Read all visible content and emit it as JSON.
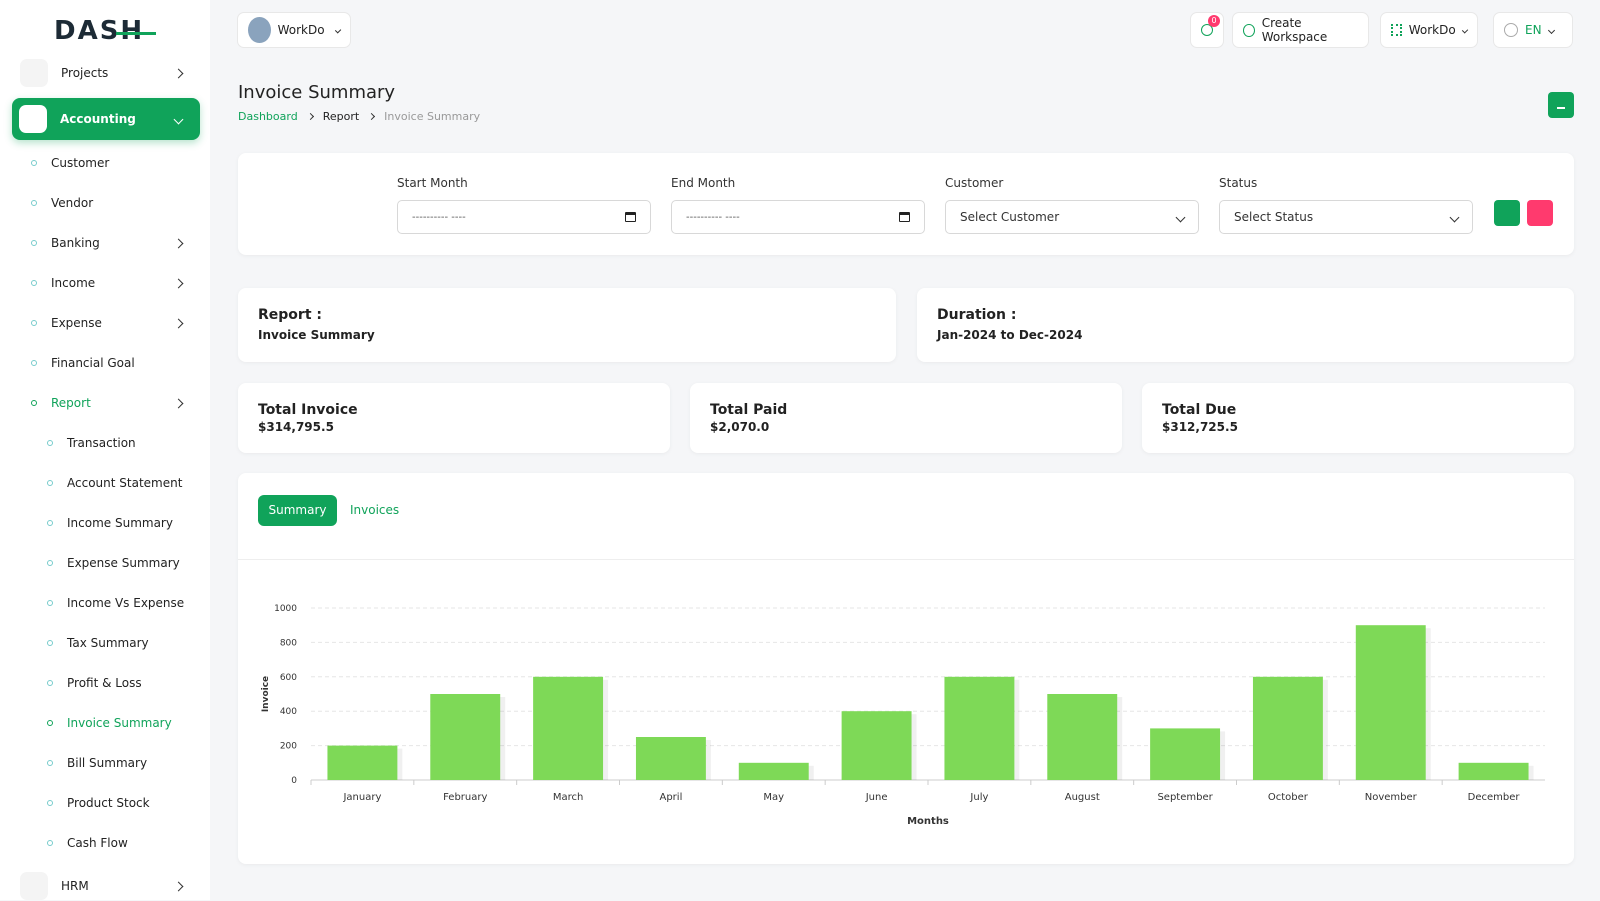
{
  "logo": "DASH",
  "header": {
    "workspace": "WorkDo",
    "notifications": 0,
    "create_workspace": "Create Workspace",
    "workspace_menu": "WorkDo",
    "language": "EN"
  },
  "sidebar": [
    {
      "label": "Projects",
      "level": 0,
      "expandable": true
    },
    {
      "label": "Accounting",
      "level": 0,
      "expandable": true,
      "open": true,
      "active": true
    },
    {
      "label": "Customer",
      "level": 1
    },
    {
      "label": "Vendor",
      "level": 1
    },
    {
      "label": "Banking",
      "level": 1,
      "expandable": true
    },
    {
      "label": "Income",
      "level": 1,
      "expandable": true
    },
    {
      "label": "Expense",
      "level": 1,
      "expandable": true
    },
    {
      "label": "Financial Goal",
      "level": 1
    },
    {
      "label": "Report",
      "level": 1,
      "expandable": true,
      "active": true
    },
    {
      "label": "Transaction",
      "level": 2
    },
    {
      "label": "Account Statement",
      "level": 2
    },
    {
      "label": "Income Summary",
      "level": 2
    },
    {
      "label": "Expense Summary",
      "level": 2
    },
    {
      "label": "Income Vs Expense",
      "level": 2
    },
    {
      "label": "Tax Summary",
      "level": 2
    },
    {
      "label": "Profit & Loss",
      "level": 2
    },
    {
      "label": "Invoice Summary",
      "level": 2,
      "active": true
    },
    {
      "label": "Bill Summary",
      "level": 2
    },
    {
      "label": "Product Stock",
      "level": 2
    },
    {
      "label": "Cash Flow",
      "level": 2
    },
    {
      "label": "HRM",
      "level": 0,
      "expandable": true
    }
  ],
  "page": {
    "title": "Invoice Summary",
    "breadcrumb": [
      "Dashboard",
      "Report",
      "Invoice Summary"
    ]
  },
  "filters": [
    {
      "label": "Start Month",
      "placeholder": "---------- ----",
      "kind": "date"
    },
    {
      "label": "End Month",
      "placeholder": "---------- ----",
      "kind": "date"
    },
    {
      "label": "Customer",
      "placeholder": "Select Customer",
      "kind": "select"
    },
    {
      "label": "Status",
      "placeholder": "Select Status",
      "kind": "select"
    }
  ],
  "report": {
    "label": "Report :",
    "value": "Invoice Summary"
  },
  "duration": {
    "label": "Duration :",
    "value": "Jan-2024 to Dec-2024"
  },
  "totals": [
    {
      "label": "Total Invoice",
      "value": "$314,795.5"
    },
    {
      "label": "Total Paid",
      "value": "$2,070.0"
    },
    {
      "label": "Total Due",
      "value": "$312,725.5"
    }
  ],
  "tabs": [
    "Summary",
    "Invoices"
  ],
  "chart_data": {
    "type": "bar",
    "categories": [
      "January",
      "February",
      "March",
      "April",
      "May",
      "June",
      "July",
      "August",
      "September",
      "October",
      "November",
      "December"
    ],
    "values": [
      200,
      500,
      600,
      250,
      100,
      400,
      600,
      500,
      300,
      600,
      900,
      100
    ],
    "color": "#7ed957",
    "x_label": "Months",
    "y_label": "Invoice",
    "ylim": [
      0,
      1000
    ],
    "yticks": [
      0,
      200,
      400,
      600,
      800,
      1000
    ],
    "grid": true
  }
}
